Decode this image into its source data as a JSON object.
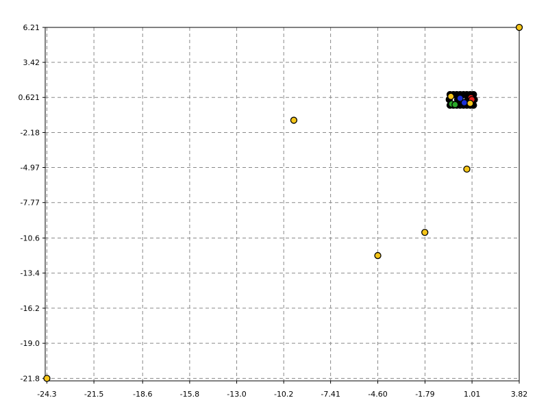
{
  "chart_data": {
    "type": "scatter",
    "title": "",
    "xlabel": "",
    "ylabel": "",
    "xlim": [
      -24.4,
      3.82
    ],
    "ylim": [
      -22.0,
      6.21
    ],
    "x_ticks": [
      -24.3,
      -21.5,
      -18.6,
      -15.8,
      -13.0,
      -10.2,
      -7.41,
      -4.6,
      -1.79,
      1.01,
      3.82
    ],
    "x_tick_labels": [
      "-24.3",
      "-21.5",
      "-18.6",
      "-15.8",
      "-13.0",
      "-10.2",
      "-7.41",
      "-4.60",
      "-1.79",
      "1.01",
      "3.82"
    ],
    "y_ticks": [
      6.21,
      3.42,
      0.621,
      -2.18,
      -4.97,
      -7.77,
      -10.6,
      -13.4,
      -16.2,
      -19.0,
      -21.8
    ],
    "y_tick_labels": [
      "6.21",
      "3.42",
      "0.621",
      "-2.18",
      "-4.97",
      "-7.77",
      "-10.6",
      "-13.4",
      "-16.2",
      "-19.0",
      "-21.8"
    ],
    "grid": true,
    "grid_style": "dashed",
    "point_colors": {
      "yellow": "#f5c518",
      "red": "#e8201c",
      "green": "#2aa82a",
      "blue": "#1a2fd6",
      "outline": "#000000"
    },
    "series": [
      {
        "color": "yellow",
        "points": [
          {
            "x": -24.3,
            "y": -21.8
          },
          {
            "x": -9.6,
            "y": -1.2
          },
          {
            "x": -4.6,
            "y": -12.0
          },
          {
            "x": -1.8,
            "y": -10.15
          },
          {
            "x": 0.7,
            "y": -5.1
          },
          {
            "x": 3.82,
            "y": 6.21
          },
          {
            "x": -0.25,
            "y": 0.7
          },
          {
            "x": 0.9,
            "y": 0.15
          }
        ]
      },
      {
        "color": "red",
        "points": [
          {
            "x": 0.95,
            "y": 0.6
          },
          {
            "x": 1.0,
            "y": 0.45
          }
        ]
      },
      {
        "color": "green",
        "points": [
          {
            "x": -0.2,
            "y": 0.1
          },
          {
            "x": 0.0,
            "y": 0.05
          }
        ]
      },
      {
        "color": "blue",
        "points": [
          {
            "x": 0.3,
            "y": 0.55
          },
          {
            "x": 0.55,
            "y": 0.2
          }
        ]
      },
      {
        "color": "black",
        "points": [
          {
            "x": -0.3,
            "y": 0.85
          },
          {
            "x": -0.1,
            "y": 0.85
          },
          {
            "x": 0.1,
            "y": 0.85
          },
          {
            "x": 0.3,
            "y": 0.85
          },
          {
            "x": 0.5,
            "y": 0.85
          },
          {
            "x": 0.7,
            "y": 0.85
          },
          {
            "x": 0.9,
            "y": 0.85
          },
          {
            "x": 1.1,
            "y": 0.85
          },
          {
            "x": -0.3,
            "y": 0.0
          },
          {
            "x": -0.1,
            "y": 0.0
          },
          {
            "x": 0.1,
            "y": 0.0
          },
          {
            "x": 0.3,
            "y": 0.0
          },
          {
            "x": 0.5,
            "y": 0.0
          },
          {
            "x": 0.7,
            "y": 0.0
          },
          {
            "x": 0.9,
            "y": 0.0
          },
          {
            "x": 1.1,
            "y": 0.0
          },
          {
            "x": -0.35,
            "y": 0.45
          },
          {
            "x": 1.15,
            "y": 0.45
          },
          {
            "x": 0.15,
            "y": 0.45
          },
          {
            "x": 0.75,
            "y": 0.45
          }
        ]
      }
    ]
  }
}
